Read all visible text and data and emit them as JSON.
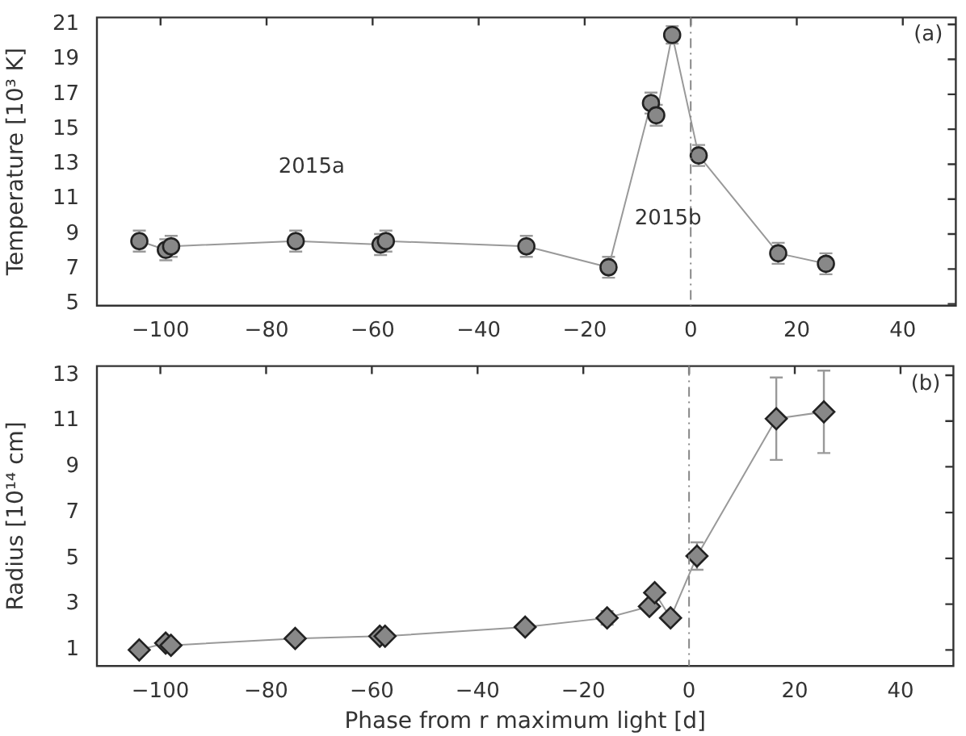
{
  "chart_data": [
    {
      "type": "line",
      "ylabel": "Temperature [10³ K]",
      "xlim": [
        -112,
        50
      ],
      "xticks": [
        {
          "value": -100,
          "label": "−100"
        },
        {
          "value": -80,
          "label": "−80"
        },
        {
          "value": -60,
          "label": "−60"
        },
        {
          "value": -40,
          "label": "−40"
        },
        {
          "value": -20,
          "label": "−20"
        },
        0,
        20,
        40
      ],
      "ylim": [
        4.9,
        21.4
      ],
      "yticks": [
        5,
        7,
        9,
        11,
        13,
        15,
        17,
        19,
        21
      ],
      "grid": false,
      "marker": "circle",
      "series": [
        {
          "color": "#888888",
          "x": [
            -104,
            -99,
            -98,
            -74.5,
            -58.5,
            -57.5,
            -31,
            -15.5,
            -7.5,
            -6.5,
            -3.5,
            1.5,
            16.5,
            25.5
          ],
          "values": [
            8.6,
            8.1,
            8.3,
            8.6,
            8.4,
            8.6,
            8.3,
            7.1,
            16.5,
            15.8,
            20.4,
            13.5,
            7.9,
            7.3
          ],
          "errors": [
            0.6,
            0.6,
            0.6,
            0.6,
            0.6,
            0.6,
            0.6,
            0.6,
            0.6,
            0.6,
            0.5,
            0.6,
            0.6,
            0.6
          ]
        }
      ],
      "ref_lines": [
        {
          "axis": "x",
          "value": 0,
          "color": "#888888",
          "line_style": "dashed"
        }
      ],
      "annotations": [
        "(a)",
        "2015a",
        "2015b"
      ]
    },
    {
      "type": "line",
      "xlabel": "Phase from r maximum light [d]",
      "ylabel": "Radius [10¹⁴ cm]",
      "xlim": [
        -112,
        50
      ],
      "xticks": [
        {
          "value": -100,
          "label": "−100"
        },
        {
          "value": -80,
          "label": "−80"
        },
        {
          "value": -60,
          "label": "−60"
        },
        {
          "value": -40,
          "label": "−40"
        },
        {
          "value": -20,
          "label": "−20"
        },
        0,
        20,
        40
      ],
      "ylim": [
        0.3,
        13.4
      ],
      "yticks": [
        1,
        3,
        5,
        7,
        9,
        11,
        13
      ],
      "grid": false,
      "marker": "diamond",
      "series": [
        {
          "color": "#888888",
          "x": [
            -104,
            -99,
            -98,
            -74.5,
            -58.5,
            -57.5,
            -31,
            -15.5,
            -7.5,
            -6.5,
            -3.5,
            1.5,
            16.5,
            25.5
          ],
          "values": [
            1.0,
            1.3,
            1.2,
            1.5,
            1.6,
            1.6,
            2.0,
            2.4,
            2.9,
            3.5,
            2.4,
            5.1,
            11.1,
            11.4
          ],
          "errors": [
            null,
            null,
            null,
            null,
            null,
            null,
            null,
            0.3,
            null,
            null,
            null,
            0.6,
            1.8,
            1.8
          ]
        }
      ],
      "ref_lines": [
        {
          "axis": "x",
          "value": 0,
          "color": "#888888",
          "line_style": "dashed"
        }
      ],
      "annotations": [
        "(b)"
      ]
    }
  ]
}
